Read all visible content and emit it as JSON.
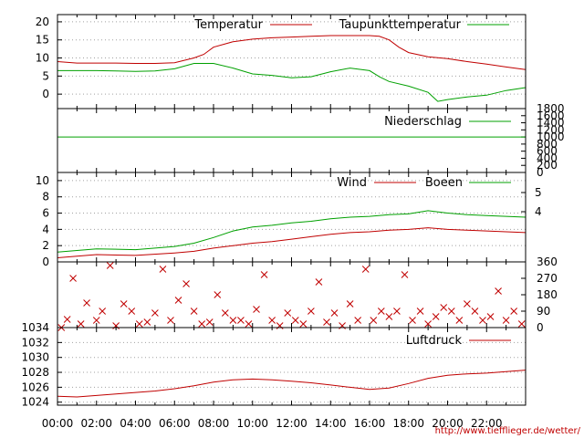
{
  "credit_text": "http://www.tiefflieger.de/wetter/",
  "x_ticks": [
    "00:00",
    "02:00",
    "04:00",
    "06:00",
    "08:00",
    "10:00",
    "12:00",
    "14:00",
    "16:00",
    "18:00",
    "20:00",
    "22:00"
  ],
  "chart_data": [
    {
      "type": "line",
      "ylim": [
        -4,
        22
      ],
      "yticks": [
        "0",
        "5",
        "10",
        "15",
        "20"
      ],
      "grid": "dotted",
      "legend": "top-right",
      "series": [
        {
          "name": "Temperatur",
          "color": "#c00000",
          "x": [
            0,
            1,
            2,
            3,
            4,
            5,
            6,
            7,
            7.5,
            8,
            9,
            10,
            11,
            12,
            13,
            14,
            15,
            16,
            16.5,
            17,
            17.5,
            18,
            19,
            20,
            21,
            22,
            23,
            24
          ],
          "y": [
            9,
            8.6,
            8.6,
            8.6,
            8.5,
            8.5,
            8.7,
            10,
            11,
            13,
            14.5,
            15.2,
            15.6,
            15.8,
            16,
            16.2,
            16.2,
            16.2,
            16,
            15,
            13,
            11.5,
            10.3,
            9.8,
            9,
            8.3,
            7.5,
            6.8
          ]
        },
        {
          "name": "Taupunkttemperatur",
          "color": "#00a000",
          "x": [
            0,
            1,
            2,
            3,
            4,
            5,
            6,
            7,
            8,
            9,
            10,
            11,
            12,
            13,
            14,
            15,
            16,
            16.5,
            17,
            18,
            19,
            19.5,
            20,
            21,
            22,
            23,
            24
          ],
          "y": [
            6.5,
            6.5,
            6.5,
            6.4,
            6.3,
            6.4,
            7,
            8.5,
            8.5,
            7.2,
            5.6,
            5.2,
            4.5,
            4.8,
            6.2,
            7.2,
            6.5,
            4.8,
            3.5,
            2.2,
            0.5,
            -2,
            -1.5,
            -0.8,
            -0.3,
            1,
            1.8
          ]
        }
      ]
    },
    {
      "type": "line",
      "ylim": [
        0,
        1800
      ],
      "yticks": [
        "0",
        "200",
        "400",
        "600",
        "800",
        "1000",
        "1200",
        "1400",
        "1600",
        "1800"
      ],
      "legend": "top-right",
      "series": [
        {
          "name": "Niederschlag",
          "color": "#00a000",
          "x": [
            0,
            24
          ],
          "y": [
            1000,
            1000
          ]
        }
      ]
    },
    {
      "type": "line",
      "ylim": [
        0,
        11
      ],
      "yticks": [
        "0",
        "2",
        "4",
        "6",
        "8",
        "10"
      ],
      "y2ticks": [
        "4",
        "5"
      ],
      "grid": "dotted",
      "legend": "top-right",
      "series": [
        {
          "name": "Wind",
          "color": "#c00000",
          "x": [
            0,
            2,
            4,
            6,
            7,
            8,
            9,
            10,
            11,
            12,
            13,
            14,
            15,
            16,
            17,
            18,
            19,
            20,
            21,
            22,
            23,
            24
          ],
          "y": [
            0.5,
            0.9,
            0.8,
            1.1,
            1.3,
            1.7,
            2,
            2.3,
            2.5,
            2.8,
            3.1,
            3.4,
            3.6,
            3.7,
            3.9,
            4,
            4.2,
            4,
            3.9,
            3.8,
            3.7,
            3.6
          ]
        },
        {
          "name": "Boeen",
          "color": "#00a000",
          "x": [
            0,
            2,
            4,
            6,
            7,
            8,
            9,
            10,
            11,
            12,
            13,
            14,
            15,
            16,
            17,
            18,
            19,
            20,
            21,
            22,
            23,
            24
          ],
          "y": [
            1.2,
            1.6,
            1.5,
            1.9,
            2.3,
            3,
            3.8,
            4.3,
            4.5,
            4.8,
            5,
            5.3,
            5.5,
            5.6,
            5.8,
            5.9,
            6.3,
            6,
            5.8,
            5.7,
            5.6,
            5.5
          ]
        }
      ]
    },
    {
      "type": "scatter",
      "ylim": [
        0,
        360
      ],
      "yticks": [
        "0",
        "90",
        "180",
        "270",
        "360"
      ],
      "series": [
        {
          "name": "",
          "color": "#c00000",
          "x": [
            0.2,
            0.5,
            0.8,
            1.2,
            1.5,
            2,
            2.3,
            2.7,
            3,
            3.4,
            3.8,
            4.2,
            4.6,
            5,
            5.4,
            5.8,
            6.2,
            6.6,
            7,
            7.4,
            7.8,
            8.2,
            8.6,
            9,
            9.4,
            9.8,
            10.2,
            10.6,
            11,
            11.4,
            11.8,
            12.2,
            12.6,
            13,
            13.4,
            13.8,
            14.2,
            14.6,
            15,
            15.4,
            15.8,
            16.2,
            16.6,
            17,
            17.4,
            17.8,
            18.2,
            18.6,
            19,
            19.4,
            19.8,
            20.2,
            20.6,
            21,
            21.4,
            21.8,
            22.2,
            22.6,
            23,
            23.4,
            23.8
          ],
          "y": [
            0,
            45,
            270,
            20,
            135,
            40,
            90,
            340,
            10,
            130,
            90,
            20,
            30,
            80,
            320,
            40,
            150,
            240,
            90,
            20,
            30,
            180,
            80,
            40,
            40,
            20,
            100,
            290,
            40,
            10,
            80,
            40,
            20,
            90,
            250,
            30,
            80,
            10,
            130,
            40,
            320,
            40,
            90,
            60,
            90,
            290,
            40,
            90,
            20,
            60,
            110,
            90,
            40,
            130,
            90,
            40,
            60,
            200,
            40,
            90,
            20
          ]
        }
      ]
    },
    {
      "type": "line",
      "ylim": [
        1023.6,
        1034
      ],
      "yticks": [
        "1024",
        "1026",
        "1028",
        "1030",
        "1032",
        "1034"
      ],
      "grid": "dotted",
      "legend": "top-right",
      "series": [
        {
          "name": "Luftdruck",
          "color": "#c00000",
          "x": [
            0,
            1,
            2,
            3,
            4,
            5,
            6,
            7,
            8,
            9,
            10,
            11,
            12,
            13,
            14,
            15,
            16,
            17,
            18,
            19,
            20,
            21,
            22,
            23,
            24
          ],
          "y": [
            1024.8,
            1024.7,
            1024.9,
            1025.1,
            1025.3,
            1025.5,
            1025.8,
            1026.2,
            1026.7,
            1027,
            1027.1,
            1027,
            1026.8,
            1026.6,
            1026.3,
            1026,
            1025.7,
            1025.9,
            1026.5,
            1027.2,
            1027.6,
            1027.8,
            1027.9,
            1028.1,
            1028.3
          ]
        }
      ]
    }
  ]
}
